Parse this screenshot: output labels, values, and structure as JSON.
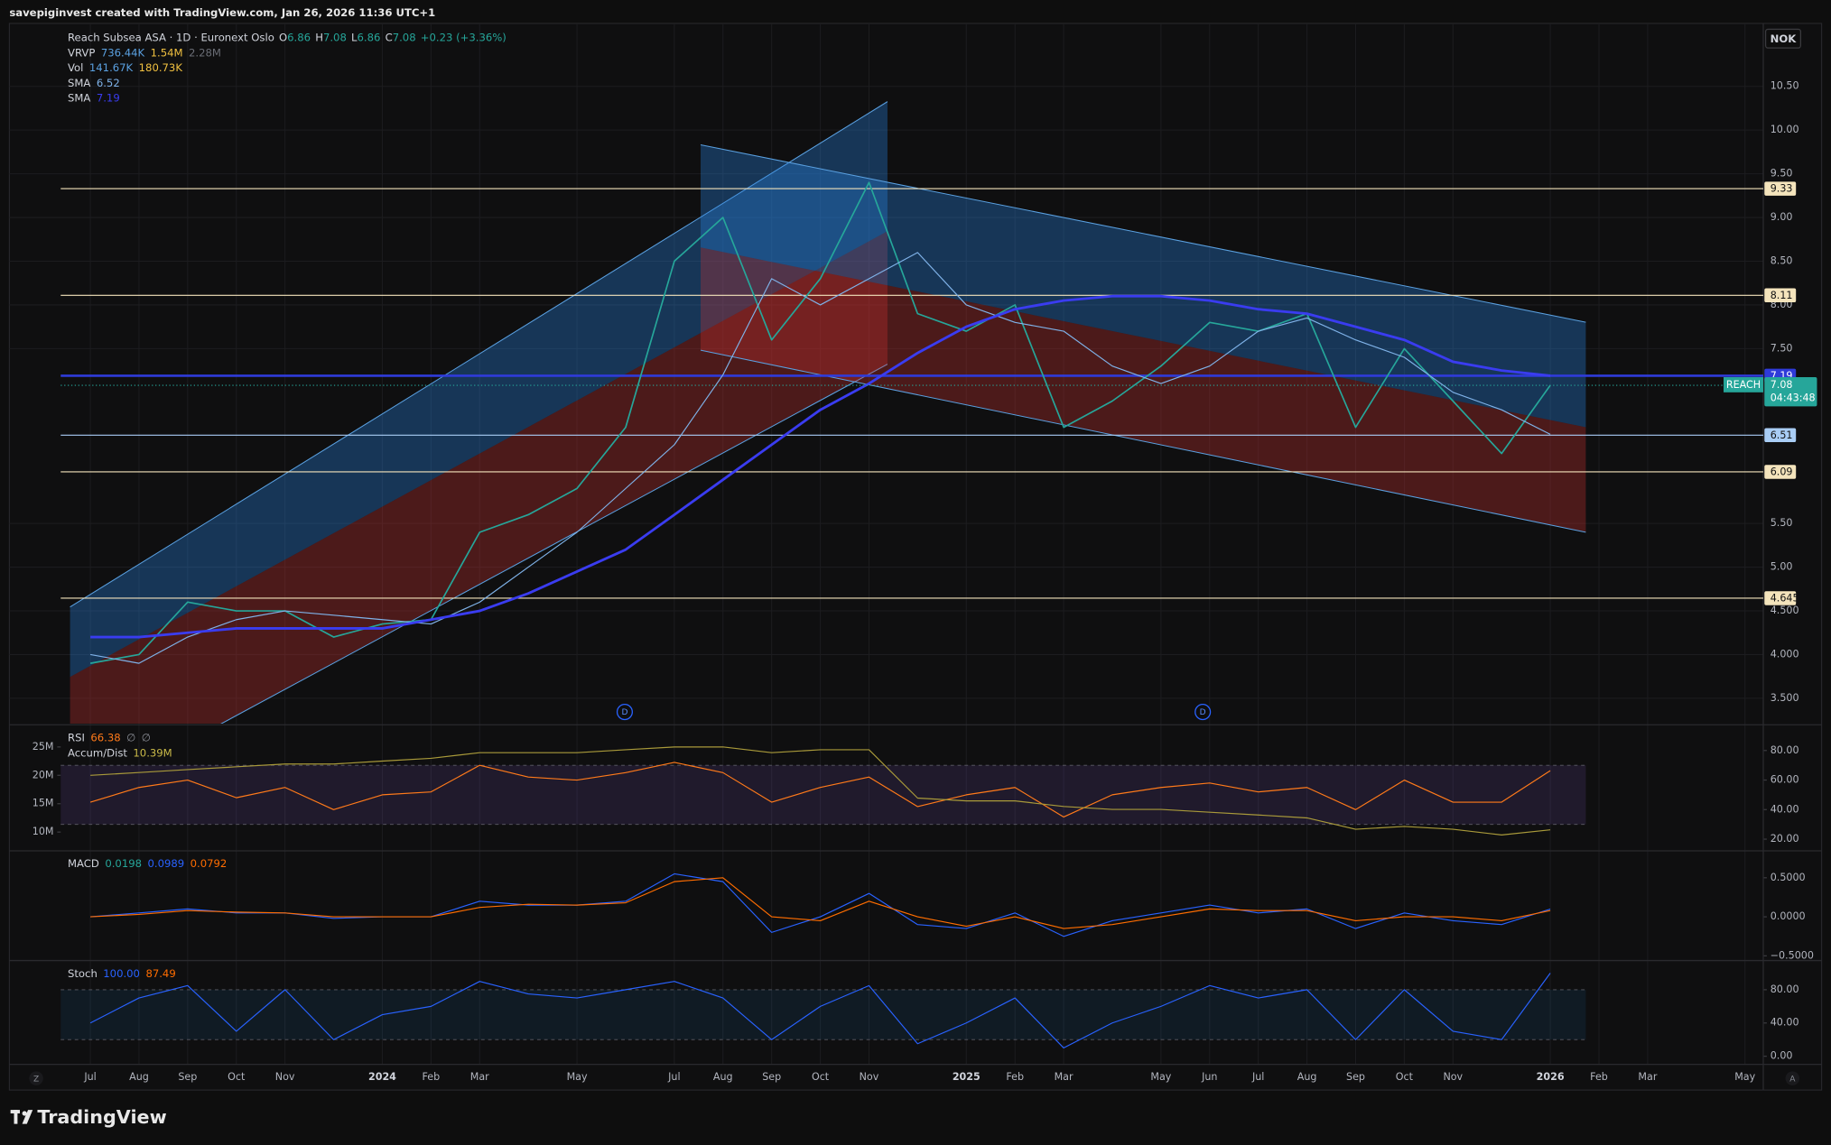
{
  "header": {
    "caption": "savepiginvest created with TradingView.com, Jan 26, 2026 11:36 UTC+1",
    "currency": "NOK",
    "footer": "TradingView",
    "zoom_button": "Z",
    "auto_button": "A",
    "markers": [
      "D",
      "D"
    ]
  },
  "legend": {
    "symbol": "Reach Subsea ASA · 1D · Euronext Oslo",
    "ohlc": [
      {
        "key": "O",
        "value": 6.86
      },
      {
        "key": "H",
        "value": 7.08
      },
      {
        "key": "L",
        "value": 6.86
      },
      {
        "key": "C",
        "value": 7.08
      }
    ],
    "change": "+0.23 (+3.36%)",
    "rows": [
      {
        "label": "VRVP",
        "values": [
          "736.44K",
          "1.54M",
          "2.28M"
        ],
        "colors": [
          "#5aa0e0",
          "#f0c040",
          "#6a6d75"
        ]
      },
      {
        "label": "Vol",
        "values": [
          "141.67K",
          "180.73K"
        ],
        "colors": [
          "#5aa0e0",
          "#f0c040"
        ]
      }
    ],
    "timer": "04:43:48"
  },
  "chart_data": [
    {
      "type": "line",
      "x": [
        "2023-07",
        "2023-08",
        "2023-09",
        "2023-10",
        "2023-11",
        "2023-12",
        "2024-01",
        "2024-02",
        "2024-03",
        "2024-04",
        "2024-05",
        "2024-06",
        "2024-07",
        "2024-08",
        "2024-09",
        "2024-10",
        "2024-11",
        "2024-12",
        "2025-01",
        "2025-02",
        "2025-03",
        "2025-04",
        "2025-05",
        "2025-06",
        "2025-07",
        "2025-08",
        "2025-09",
        "2025-10",
        "2025-11",
        "2025-12",
        "2026-01"
      ],
      "xlim": [
        "2023-05",
        "2026-06"
      ],
      "xticks": [
        {
          "value": "2023-07",
          "label": "Jul"
        },
        {
          "value": "2023-08",
          "label": "Aug"
        },
        {
          "value": "2023-09",
          "label": "Sep"
        },
        {
          "value": "2023-10",
          "label": "Oct"
        },
        {
          "value": "2023-11",
          "label": "Nov"
        },
        {
          "value": "2024-01",
          "label": "2024"
        },
        {
          "value": "2024-02",
          "label": "Feb"
        },
        {
          "value": "2024-03",
          "label": "Mar"
        },
        {
          "value": "2024-05",
          "label": "May"
        },
        {
          "value": "2024-07",
          "label": "Jul"
        },
        {
          "value": "2024-08",
          "label": "Aug"
        },
        {
          "value": "2024-09",
          "label": "Sep"
        },
        {
          "value": "2024-10",
          "label": "Oct"
        },
        {
          "value": "2024-11",
          "label": "Nov"
        },
        {
          "value": "2025-01",
          "label": "2025"
        },
        {
          "value": "2025-02",
          "label": "Feb"
        },
        {
          "value": "2025-03",
          "label": "Mar"
        },
        {
          "value": "2025-05",
          "label": "May"
        },
        {
          "value": "2025-06",
          "label": "Jun"
        },
        {
          "value": "2025-07",
          "label": "Jul"
        },
        {
          "value": "2025-08",
          "label": "Aug"
        },
        {
          "value": "2025-09",
          "label": "Sep"
        },
        {
          "value": "2025-10",
          "label": "Oct"
        },
        {
          "value": "2025-11",
          "label": "Nov"
        },
        {
          "value": "2026-01",
          "label": "2026"
        },
        {
          "value": "2026-02",
          "label": "Feb"
        },
        {
          "value": "2026-03",
          "label": "Mar"
        },
        {
          "value": "2026-05",
          "label": "May"
        }
      ],
      "ylim": [
        3.21,
        11.22
      ],
      "yticks": [
        {
          "value": 3.5,
          "label": "3.500"
        },
        {
          "value": 4,
          "label": "4.000"
        },
        {
          "value": 4.5,
          "label": "4.500"
        },
        {
          "value": 5,
          "label": "5.00"
        },
        {
          "value": 5.5,
          "label": "5.50"
        },
        {
          "value": 7.5,
          "label": "7.50"
        },
        {
          "value": 8,
          "label": "8.00"
        },
        {
          "value": 8.5,
          "label": "8.50"
        },
        {
          "value": 9,
          "label": "9.00"
        },
        {
          "value": 9.5,
          "label": "9.50"
        },
        {
          "value": 10,
          "label": "10.00"
        },
        {
          "value": 10.5,
          "label": "10.50"
        }
      ],
      "grid": true,
      "series": [
        {
          "name": "REACH",
          "color": "#26a69a",
          "values": [
            3.9,
            4.0,
            4.6,
            4.5,
            4.5,
            4.2,
            4.35,
            4.4,
            5.4,
            5.6,
            5.9,
            6.6,
            8.5,
            9.0,
            7.6,
            8.3,
            9.4,
            7.9,
            7.7,
            8.0,
            6.6,
            6.9,
            7.3,
            7.8,
            7.7,
            7.9,
            6.6,
            7.5,
            6.9,
            6.3,
            7.08
          ]
        },
        {
          "name": "SMA",
          "color": "#7fb2e8",
          "values": [
            4.0,
            3.9,
            4.2,
            4.4,
            4.5,
            4.45,
            4.4,
            4.35,
            4.6,
            5.0,
            5.4,
            5.9,
            6.4,
            7.2,
            8.3,
            8.0,
            8.3,
            8.6,
            8.0,
            7.8,
            7.7,
            7.3,
            7.1,
            7.3,
            7.7,
            7.85,
            7.6,
            7.4,
            7.0,
            6.8,
            6.52
          ]
        },
        {
          "name": "SMA",
          "color": "#3a3cf0",
          "values": [
            4.2,
            4.2,
            4.25,
            4.3,
            4.3,
            4.3,
            4.3,
            4.4,
            4.5,
            4.7,
            4.95,
            5.2,
            5.6,
            6.0,
            6.4,
            6.8,
            7.1,
            7.45,
            7.75,
            7.95,
            8.05,
            8.1,
            8.1,
            8.05,
            7.95,
            7.9,
            7.75,
            7.6,
            7.35,
            7.25,
            7.19
          ]
        }
      ],
      "levels": [
        {
          "price": 9.33,
          "color": "#f4e4bc"
        },
        {
          "price": 8.11,
          "color": "#f4e4bc"
        },
        {
          "price": 7.19,
          "color": "#2f3bd9"
        },
        {
          "price": 6.51,
          "color": "#a9cdf5"
        },
        {
          "price": 6.09,
          "color": "#f4e4bc"
        },
        {
          "price": 4.645,
          "color": "#f4e4bc"
        }
      ]
    },
    {
      "type": "line",
      "ylim": [
        12.9,
        96.6
      ],
      "yticks": [
        {
          "value": 20,
          "label": "20.00"
        },
        {
          "value": 40,
          "label": "40.00"
        },
        {
          "value": 60,
          "label": "60.00"
        },
        {
          "value": 80,
          "label": "80.00"
        }
      ],
      "y2lim": [
        6900000,
        28700000
      ],
      "y2ticks": [
        {
          "value": 10000000,
          "label": "10M"
        },
        {
          "value": 15000000,
          "label": "15M"
        },
        {
          "value": 20000000,
          "label": "20M"
        },
        {
          "value": 25000000,
          "label": "25M"
        }
      ],
      "band": [
        30,
        70
      ],
      "legend": [
        {
          "text": "RSI",
          "values": [
            66.38,
            "∅",
            "∅"
          ],
          "colors": [
            "#ff7a1a",
            "#8a8d95",
            "#8a8d95"
          ]
        },
        {
          "text": "Accum/Dist",
          "values": [
            "10.39M"
          ],
          "colors": [
            "#c9b948"
          ]
        }
      ],
      "series": [
        {
          "color": "#ff7a1a",
          "values": [
            45,
            55,
            60,
            48,
            55,
            40,
            50,
            52,
            70,
            62,
            60,
            65,
            72,
            65,
            45,
            55,
            62,
            42,
            50,
            55,
            35,
            50,
            55,
            58,
            52,
            55,
            40,
            60,
            45,
            45,
            66.38
          ]
        },
        {
          "color": "#a99a3a",
          "axis": "y2",
          "values": [
            20000000,
            20500000,
            21000000,
            21500000,
            22000000,
            22000000,
            22500000,
            23000000,
            24000000,
            24000000,
            24000000,
            24500000,
            25000000,
            25000000,
            24000000,
            24500000,
            24500000,
            16000000,
            15500000,
            15500000,
            14500000,
            14000000,
            14000000,
            13500000,
            13000000,
            12500000,
            10500000,
            11000000,
            10500000,
            9500000,
            10390000
          ]
        }
      ]
    },
    {
      "type": "line",
      "ylim": [
        -0.545,
        0.83
      ],
      "yticks": [
        {
          "value": -0.5,
          "label": "−0.5000"
        },
        {
          "value": 0,
          "label": "0.0000"
        },
        {
          "value": 0.5,
          "label": "0.5000"
        }
      ],
      "legend": [
        {
          "text": "MACD",
          "values": [
            0.0198,
            0.0989,
            0.0792
          ],
          "colors": [
            "#26a69a",
            "#2962ff",
            "#ff6d00"
          ]
        }
      ],
      "series": [
        {
          "color": "#2962ff",
          "values": [
            0,
            0.05,
            0.1,
            0.05,
            0.05,
            -0.02,
            0,
            0,
            0.2,
            0.15,
            0.15,
            0.2,
            0.55,
            0.45,
            -0.2,
            0,
            0.3,
            -0.1,
            -0.15,
            0.05,
            -0.25,
            -0.05,
            0.05,
            0.15,
            0.05,
            0.1,
            -0.15,
            0.05,
            -0.05,
            -0.1,
            0.0989
          ]
        },
        {
          "color": "#ff6d00",
          "values": [
            0,
            0.03,
            0.08,
            0.06,
            0.05,
            0,
            0,
            0,
            0.12,
            0.16,
            0.15,
            0.18,
            0.45,
            0.5,
            0,
            -0.05,
            0.2,
            0,
            -0.12,
            0,
            -0.15,
            -0.1,
            0,
            0.1,
            0.08,
            0.08,
            -0.05,
            0,
            0,
            -0.05,
            0.0792
          ]
        }
      ]
    },
    {
      "type": "line",
      "ylim": [
        -9.8,
        113.7
      ],
      "yticks": [
        {
          "value": 0,
          "label": "0.00"
        },
        {
          "value": 40,
          "label": "40.00"
        },
        {
          "value": 80,
          "label": "80.00"
        }
      ],
      "band": [
        20,
        80
      ],
      "legend": [
        {
          "text": "Stoch",
          "values": [
            "100.00",
            87.49
          ],
          "colors": [
            "#2962ff",
            "#ff6d00"
          ]
        }
      ],
      "series": [
        {
          "color": "#2962ff",
          "values": [
            40,
            70,
            85,
            30,
            80,
            20,
            50,
            60,
            90,
            75,
            70,
            80,
            90,
            70,
            20,
            60,
            85,
            15,
            40,
            70,
            10,
            40,
            60,
            85,
            70,
            80,
            20,
            80,
            30,
            20,
            100
          ]
        }
      ]
    }
  ]
}
